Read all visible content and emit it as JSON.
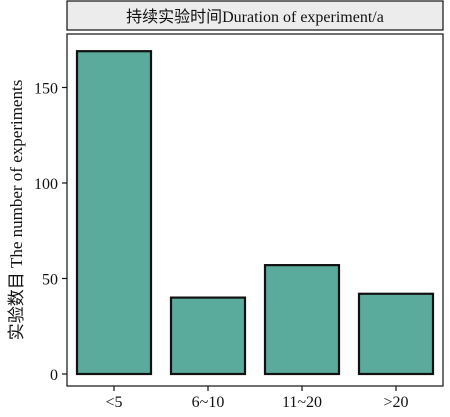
{
  "chart_data": {
    "type": "bar",
    "title": "持续实验时间Duration of experiment/a",
    "xlabel": "",
    "ylabel": "实验数目 The number of experiments",
    "categories": [
      "<5",
      "6~10",
      "11~20",
      ">20"
    ],
    "values": [
      169,
      40,
      57,
      42
    ],
    "ylim": [
      0,
      178
    ],
    "yticks": [
      0,
      50,
      100,
      150
    ],
    "grid": false,
    "legend": "none",
    "colors": {
      "bar_fill": "#5aab9c",
      "bar_stroke": "#111111",
      "header_fill": "#ececec",
      "axis": "#111111"
    }
  }
}
